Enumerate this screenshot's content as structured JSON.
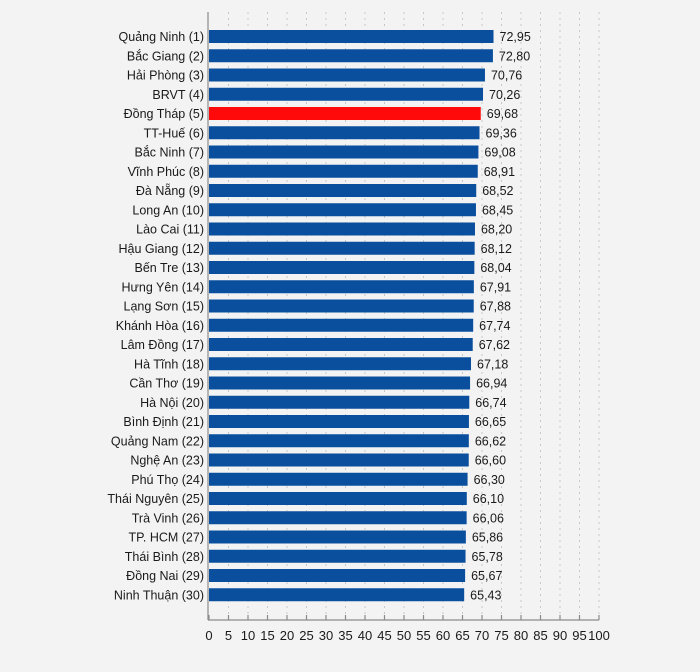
{
  "chart_data": {
    "type": "bar",
    "orientation": "horizontal",
    "title": "",
    "xlabel": "",
    "ylabel": "",
    "xlim": [
      0,
      100
    ],
    "x_ticks": [
      0,
      5,
      10,
      15,
      20,
      25,
      30,
      35,
      40,
      45,
      50,
      55,
      60,
      65,
      70,
      75,
      80,
      85,
      90,
      95,
      100
    ],
    "grid": "vertical dotted",
    "legend": "none",
    "colors": {
      "default_bar": "#0a4f9e",
      "highlight_bar": "#ff0a0a",
      "text": "#1a1a1a",
      "background": "#f3f3f3"
    },
    "highlight_index": 4,
    "categories": [
      "Quảng Ninh (1)",
      "Bắc Giang (2)",
      "Hải Phòng (3)",
      "BRVT (4)",
      "Đồng Tháp (5)",
      "TT-Huế (6)",
      "Bắc Ninh (7)",
      "Vĩnh Phúc (8)",
      "Đà Nẵng (9)",
      "Long An (10)",
      "Lào Cai (11)",
      "Hậu Giang (12)",
      "Bến Tre (13)",
      "Hưng Yên (14)",
      "Lạng Sơn (15)",
      "Khánh Hòa (16)",
      "Lâm Đồng (17)",
      "Hà Tĩnh (18)",
      "Cần Thơ (19)",
      "Hà Nội (20)",
      "Bình Định (21)",
      "Quảng Nam (22)",
      "Nghệ An (23)",
      "Phú Thọ (24)",
      "Thái Nguyên (25)",
      "Trà Vinh (26)",
      "TP. HCM (27)",
      "Thái Bình (28)",
      "Đồng Nai (29)",
      "Ninh Thuận (30)"
    ],
    "values": [
      72.95,
      72.8,
      70.76,
      70.26,
      69.68,
      69.36,
      69.08,
      68.91,
      68.52,
      68.45,
      68.2,
      68.12,
      68.04,
      67.91,
      67.88,
      67.74,
      67.62,
      67.18,
      66.94,
      66.74,
      66.65,
      66.62,
      66.6,
      66.3,
      66.1,
      66.06,
      65.86,
      65.78,
      65.67,
      65.43
    ],
    "value_labels": [
      "72,95",
      "72,80",
      "70,76",
      "70,26",
      "69,68",
      "69,36",
      "69,08",
      "68,91",
      "68,52",
      "68,45",
      "68,20",
      "68,12",
      "68,04",
      "67,91",
      "67,88",
      "67,74",
      "67,62",
      "67,18",
      "66,94",
      "66,74",
      "66,65",
      "66,62",
      "66,60",
      "66,30",
      "66,10",
      "66,06",
      "65,86",
      "65,78",
      "65,67",
      "65,43"
    ]
  }
}
